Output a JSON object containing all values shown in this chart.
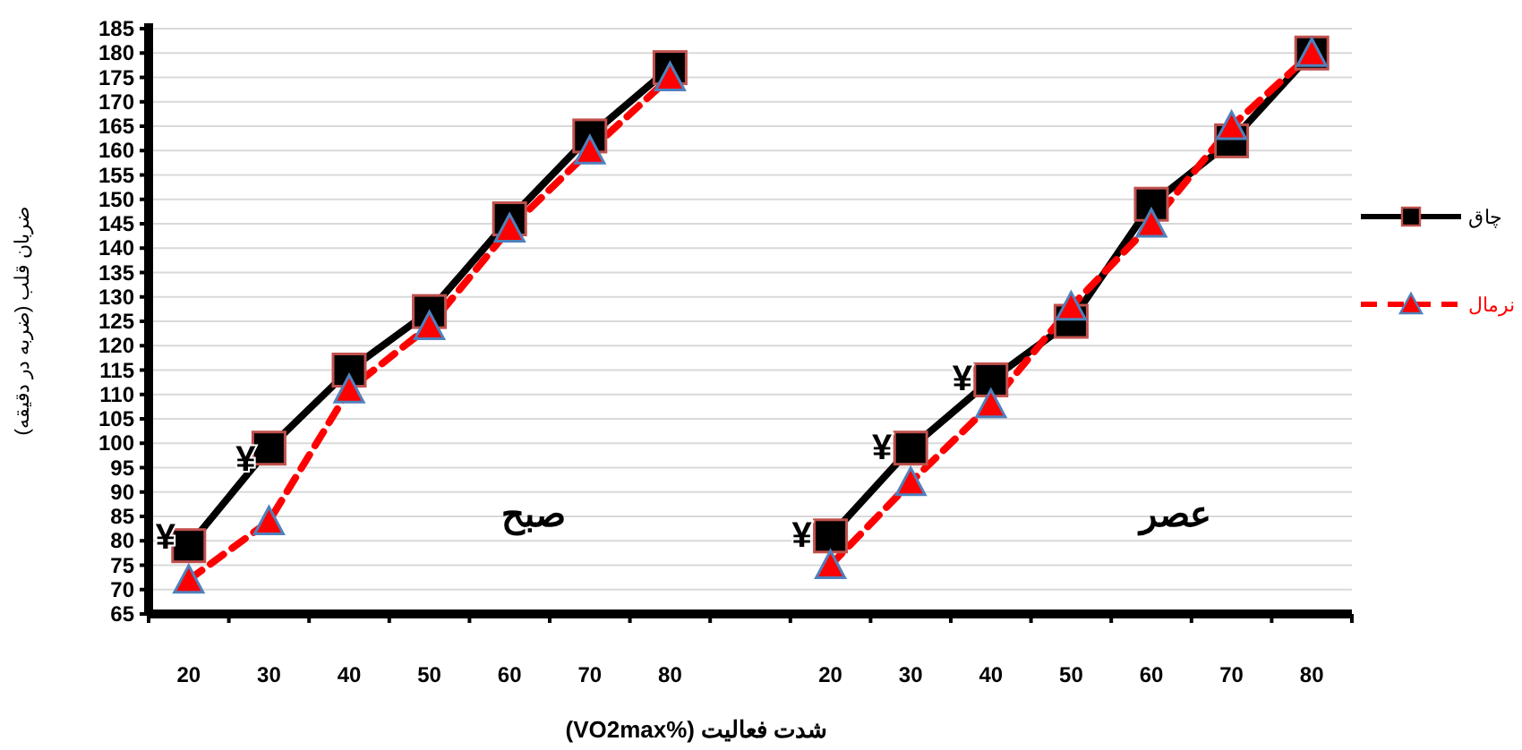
{
  "chart_data": {
    "type": "line",
    "categories": [
      "20",
      "30",
      "40",
      "50",
      "60",
      "70",
      "80",
      null,
      "20",
      "30",
      "40",
      "50",
      "60",
      "70",
      "80"
    ],
    "series": [
      {
        "name": "چاق",
        "color": "#000000",
        "marker": "square",
        "line_style": "solid",
        "values": [
          79,
          99,
          115,
          127,
          146,
          163,
          177,
          null,
          81,
          99,
          113,
          125,
          149,
          162,
          180
        ]
      },
      {
        "name": "نرمال",
        "color": "#ff0000",
        "marker": "triangle",
        "line_style": "dashed",
        "values": [
          72,
          84,
          111,
          124,
          144,
          160,
          175,
          null,
          75,
          92,
          108,
          128,
          145,
          165,
          180
        ]
      }
    ],
    "xlabel": "شدت فعالیت (%VO2max)",
    "ylabel": "ضربان قلب (ضربه در دقیقه)",
    "ylim": [
      65,
      185
    ],
    "yticks": [
      65,
      70,
      75,
      80,
      85,
      90,
      95,
      100,
      105,
      110,
      115,
      120,
      125,
      130,
      135,
      140,
      145,
      150,
      155,
      160,
      165,
      170,
      175,
      180,
      185
    ],
    "grid": "y",
    "legend": "right",
    "annotations": [
      "صبح",
      "عصر",
      {
        "text": "¥",
        "x": "20",
        "y": 81
      },
      {
        "text": "¥",
        "x": "30",
        "y": 97
      },
      "¥",
      "¥",
      "¥"
    ]
  }
}
